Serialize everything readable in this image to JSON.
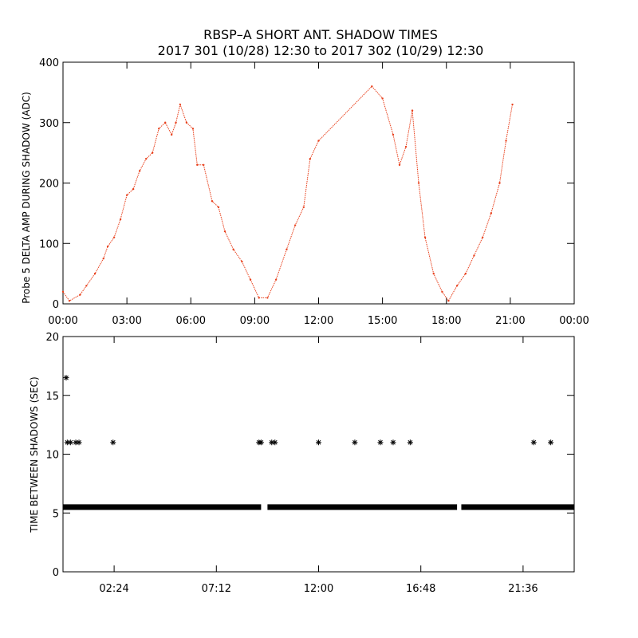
{
  "title_line1": "RBSP–A SHORT ANT. SHADOW TIMES",
  "title_line2": "2017 301 (10/28) 12:30 to 2017 302 (10/29) 12:30",
  "colors": {
    "trace": "#e8401c",
    "marks": "#000000",
    "axis": "#000000"
  },
  "chart_data": [
    {
      "type": "scatter",
      "ylabel": "Probe 5 DELTA AMP DURING SHADOW (ADC)",
      "xlim": [
        0,
        24
      ],
      "ylim": [
        0,
        400
      ],
      "xticks": [
        0,
        3,
        6,
        9,
        12,
        15,
        18,
        21,
        24
      ],
      "xtick_labels": [
        "00:00",
        "03:00",
        "06:00",
        "09:00",
        "12:00",
        "15:00",
        "18:00",
        "21:00",
        "00:00"
      ],
      "yticks": [
        0,
        100,
        200,
        300,
        400
      ],
      "ytick_labels": [
        "0",
        "100",
        "200",
        "300",
        "400"
      ],
      "series": [
        {
          "marker": "dot",
          "points": [
            [
              0.0,
              20
            ],
            [
              0.3,
              5
            ],
            [
              0.8,
              15
            ],
            [
              1.1,
              30
            ],
            [
              1.5,
              50
            ],
            [
              1.9,
              75
            ],
            [
              2.1,
              95
            ],
            [
              2.4,
              110
            ],
            [
              2.7,
              140
            ],
            [
              3.0,
              180
            ],
            [
              3.3,
              190
            ],
            [
              3.6,
              220
            ],
            [
              3.9,
              240
            ],
            [
              4.2,
              250
            ],
            [
              4.5,
              290
            ],
            [
              4.8,
              300
            ],
            [
              5.1,
              280
            ],
            [
              5.3,
              300
            ],
            [
              5.5,
              330
            ],
            [
              5.8,
              300
            ],
            [
              6.1,
              290
            ],
            [
              6.3,
              230
            ],
            [
              6.6,
              230
            ],
            [
              7.0,
              170
            ],
            [
              7.3,
              160
            ],
            [
              7.6,
              120
            ],
            [
              8.0,
              90
            ],
            [
              8.4,
              70
            ],
            [
              8.8,
              40
            ],
            [
              9.2,
              10
            ],
            [
              9.6,
              10
            ],
            [
              10.0,
              40
            ],
            [
              10.5,
              90
            ],
            [
              10.9,
              130
            ],
            [
              11.3,
              160
            ],
            [
              11.6,
              240
            ],
            [
              12.0,
              270
            ],
            [
              14.5,
              360
            ],
            [
              15.0,
              340
            ],
            [
              15.5,
              280
            ],
            [
              15.8,
              230
            ],
            [
              16.1,
              260
            ],
            [
              16.4,
              320
            ],
            [
              16.7,
              200
            ],
            [
              17.0,
              110
            ],
            [
              17.4,
              50
            ],
            [
              17.8,
              20
            ],
            [
              18.1,
              5
            ],
            [
              18.5,
              30
            ],
            [
              18.9,
              50
            ],
            [
              19.3,
              80
            ],
            [
              19.7,
              110
            ],
            [
              20.1,
              150
            ],
            [
              20.5,
              200
            ],
            [
              20.8,
              270
            ],
            [
              21.1,
              330
            ]
          ]
        }
      ]
    },
    {
      "type": "scatter",
      "ylabel": "TIME BETWEEN SHADOWS (SEC)",
      "xlim": [
        0,
        24
      ],
      "ylim": [
        0,
        20
      ],
      "xticks": [
        2.4,
        7.2,
        12.0,
        16.8,
        21.6
      ],
      "xtick_labels": [
        "02:24",
        "07:12",
        "12:00",
        "16:48",
        "21:36"
      ],
      "yticks": [
        0,
        5,
        10,
        15,
        20
      ],
      "ytick_labels": [
        "0",
        "5",
        "10",
        "15",
        "20"
      ],
      "series": [
        {
          "name": "",
          "marker": "asterisk",
          "baseline": {
            "y": 5.5,
            "x_start": 0.0,
            "x_end": 24.0,
            "gaps": [
              [
                9.3,
                9.6
              ],
              [
                18.5,
                18.7
              ]
            ]
          },
          "points": [
            [
              0.15,
              16.5
            ],
            [
              0.2,
              11.0
            ],
            [
              0.35,
              11.0
            ],
            [
              0.6,
              11.0
            ],
            [
              0.75,
              11.0
            ],
            [
              2.35,
              11.0
            ],
            [
              9.2,
              11.0
            ],
            [
              9.3,
              11.0
            ],
            [
              9.8,
              11.0
            ],
            [
              9.95,
              11.0
            ],
            [
              12.0,
              11.0
            ],
            [
              13.7,
              11.0
            ],
            [
              14.9,
              11.0
            ],
            [
              15.5,
              11.0
            ],
            [
              16.3,
              11.0
            ],
            [
              22.1,
              11.0
            ],
            [
              22.9,
              11.0
            ]
          ]
        }
      ]
    }
  ]
}
